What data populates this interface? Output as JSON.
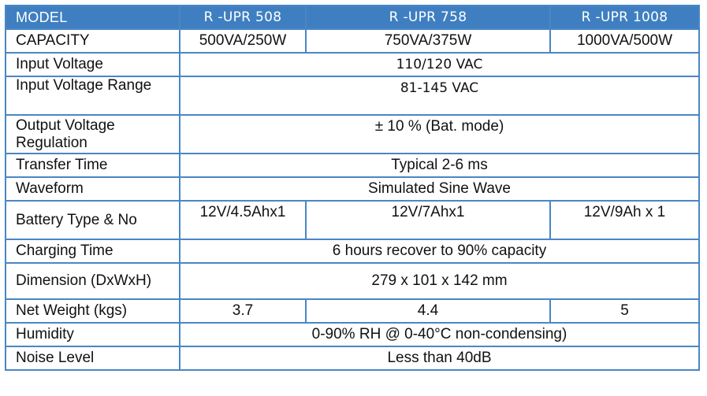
{
  "header": {
    "model_label": "MODEL",
    "models": [
      "R -UPR 508",
      "R -UPR 758",
      "R -UPR 1008"
    ]
  },
  "rows": [
    {
      "label": "CAPACITY",
      "values": [
        "500VA/250W",
        "750VA/375W",
        "1000VA/500W"
      ]
    },
    {
      "label": "Input Voltage",
      "value": "110/120 VAC"
    },
    {
      "label": "Input Voltage Range",
      "value": "81-145 VAC"
    },
    {
      "label": "Output Voltage Regulation",
      "value": "± 10 % (Bat. mode)"
    },
    {
      "label": "Transfer Time",
      "value": "Typical 2-6 ms"
    },
    {
      "label": "Waveform",
      "value": "Simulated Sine Wave"
    },
    {
      "label": "Battery Type & No",
      "values": [
        "12V/4.5Ahx1",
        "12V/7Ahx1",
        "12V/9Ah x 1"
      ]
    },
    {
      "label": "Charging Time",
      "value": "6 hours recover to 90% capacity"
    },
    {
      "label": "Dimension (DxWxH)",
      "value": "279 x 101 x 142 mm"
    },
    {
      "label": "Net Weight (kgs)",
      "values": [
        "3.7",
        "4.4",
        "5"
      ]
    },
    {
      "label": "Humidity",
      "value": "0-90% RH @ 0-40°C non-condensing)"
    },
    {
      "label": "Noise Level",
      "value": "Less than 40dB"
    }
  ],
  "colors": {
    "header_background": "#3f7fc1",
    "border": "#4a86c5",
    "header_text": "#ffffff"
  }
}
